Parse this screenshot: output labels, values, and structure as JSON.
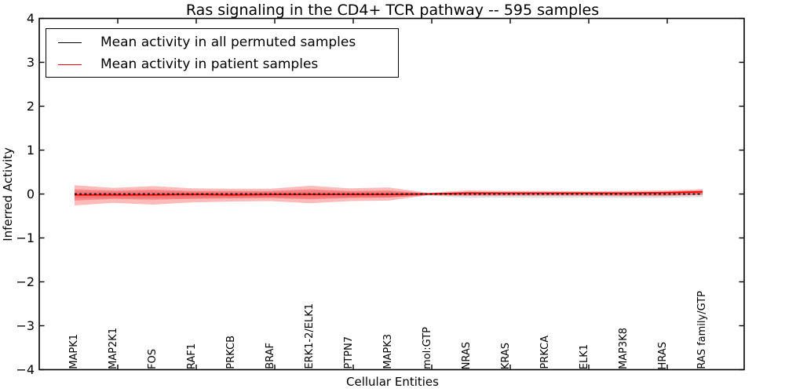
{
  "chart_data": {
    "type": "line",
    "title": "Ras signaling in the CD4+ TCR pathway -- 595 samples",
    "xlabel": "Cellular Entities",
    "ylabel": "Inferred Activity",
    "ylim": [
      -4,
      4
    ],
    "yticks": [
      "4",
      "3",
      "2",
      "1",
      "0",
      "−1",
      "−2",
      "−3",
      "−4"
    ],
    "ytick_values": [
      4,
      3,
      2,
      1,
      0,
      -1,
      -2,
      -3,
      -4
    ],
    "grid": false,
    "legend_position": "upper left",
    "background_color": "#ffffff",
    "categories": [
      "MAPK1",
      "MAP2K1",
      "FOS",
      "RAF1",
      "PRKCB",
      "BRAF",
      "ERK1-2/ELK1",
      "PTPN7",
      "MAPK3",
      "mol:GTP",
      "NRAS",
      "KRAS",
      "PRKCA",
      "ELK1",
      "MAP3K8",
      "HRAS",
      "RAS family/GTP"
    ],
    "series": [
      {
        "name": "Mean activity in all permuted samples",
        "color": "#000000",
        "style": "dashed",
        "values": [
          0.0,
          0.0,
          0.0,
          0.0,
          0.0,
          0.0,
          0.0,
          0.0,
          0.0,
          0.0,
          0.0,
          0.0,
          0.0,
          0.0,
          0.0,
          0.0,
          0.0
        ]
      },
      {
        "name": "Mean activity in patient samples",
        "color": "#ff0000",
        "style": "solid",
        "values": [
          -0.02,
          -0.02,
          -0.02,
          -0.01,
          -0.02,
          -0.01,
          -0.01,
          -0.01,
          -0.01,
          0.0,
          0.02,
          0.02,
          0.02,
          0.02,
          0.02,
          0.03,
          0.05
        ]
      }
    ],
    "bands": [
      {
        "name": "permuted-samples-std-band",
        "color": "#888888",
        "opacity": 0.25,
        "upper": [
          0.06,
          0.05,
          0.06,
          0.05,
          0.05,
          0.05,
          0.06,
          0.05,
          0.05,
          0.02,
          0.05,
          0.05,
          0.05,
          0.05,
          0.05,
          0.05,
          0.05
        ],
        "lower": [
          -0.1,
          -0.09,
          -0.1,
          -0.09,
          -0.08,
          -0.08,
          -0.09,
          -0.08,
          -0.08,
          -0.03,
          -0.09,
          -0.08,
          -0.09,
          -0.08,
          -0.09,
          -0.09,
          -0.07
        ]
      },
      {
        "name": "patient-samples-std-band-outer",
        "color": "#ff0000",
        "opacity": 0.27,
        "upper": [
          0.2,
          0.14,
          0.18,
          0.13,
          0.12,
          0.12,
          0.19,
          0.13,
          0.15,
          0.03,
          0.08,
          0.07,
          0.07,
          0.06,
          0.07,
          0.08,
          0.11
        ],
        "lower": [
          -0.26,
          -0.2,
          -0.24,
          -0.19,
          -0.17,
          -0.16,
          -0.21,
          -0.16,
          -0.15,
          -0.03,
          -0.04,
          -0.04,
          -0.04,
          -0.04,
          -0.05,
          -0.05,
          -0.02
        ]
      },
      {
        "name": "patient-samples-std-band-inner",
        "color": "#ff0000",
        "opacity": 0.27,
        "upper": [
          0.11,
          0.08,
          0.1,
          0.07,
          0.07,
          0.07,
          0.11,
          0.07,
          0.08,
          0.02,
          0.05,
          0.04,
          0.04,
          0.04,
          0.04,
          0.05,
          0.08
        ],
        "lower": [
          -0.15,
          -0.11,
          -0.13,
          -0.11,
          -0.1,
          -0.09,
          -0.12,
          -0.09,
          -0.08,
          -0.02,
          -0.03,
          -0.02,
          -0.02,
          -0.02,
          -0.03,
          -0.03,
          -0.01
        ]
      }
    ]
  }
}
